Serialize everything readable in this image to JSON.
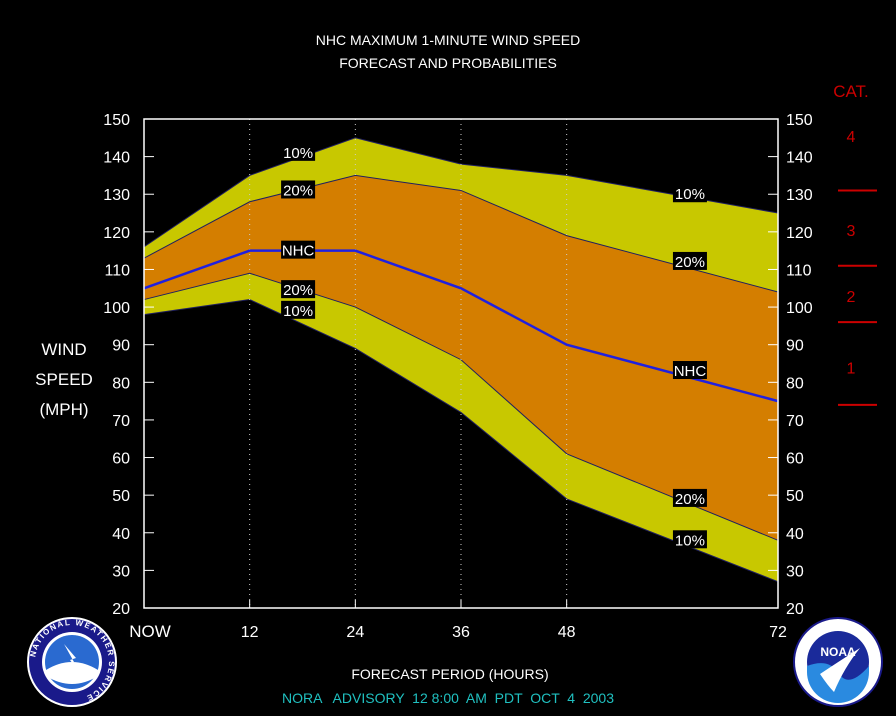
{
  "title_line1": "NHC MAXIMUM 1-MINUTE WIND SPEED",
  "title_line2": "FORECAST AND PROBABILITIES",
  "ylabel_lines": [
    "WIND",
    "SPEED",
    "(MPH)"
  ],
  "xlabel": "FORECAST PERIOD (HOURS)",
  "footer": "NORA   ADVISORY  12 8:00  AM  PDT  OCT  4  2003",
  "cat_header": "CAT.",
  "categories": [
    {
      "label": "4",
      "y": 145.5
    },
    {
      "label": "3",
      "y": 120.5
    },
    {
      "label": "2",
      "y": 103
    },
    {
      "label": "1",
      "y": 84
    }
  ],
  "cat_boundaries": [
    131,
    111,
    96,
    74
  ],
  "logos": {
    "nws": "NATIONAL WEATHER SERVICE",
    "noaa": "NOAA"
  },
  "colors": {
    "outer_band": "#c8c800",
    "inner_band": "#d47e00",
    "nhc_line": "#2020e0",
    "category": "#cc0000",
    "footer": "#20c0c0",
    "axis": "#ffffff"
  },
  "chart_data": {
    "type": "area",
    "x": [
      0,
      12,
      24,
      36,
      48,
      72
    ],
    "x_tick_labels": [
      "NOW",
      "12",
      "24",
      "36",
      "48",
      "72"
    ],
    "ylim": [
      20,
      150
    ],
    "y_ticks": [
      20,
      30,
      40,
      50,
      60,
      70,
      80,
      90,
      100,
      110,
      120,
      130,
      140,
      150
    ],
    "gridlines": "vertical dotted at 12, 24, 36, 48",
    "series": [
      {
        "name": "10%",
        "values": [
          116,
          135,
          145,
          138,
          135,
          125
        ]
      },
      {
        "name": "20%",
        "values": [
          113,
          128,
          135,
          131,
          119,
          104
        ]
      },
      {
        "name": "NHC",
        "values": [
          105,
          115,
          115,
          105,
          90,
          75
        ]
      },
      {
        "name": "20%",
        "values": [
          102,
          109,
          100,
          86,
          61,
          38
        ]
      },
      {
        "name": "10%",
        "values": [
          98,
          102,
          89,
          72,
          49,
          27
        ]
      }
    ],
    "labels": [
      {
        "text": "10%",
        "x": 17.5,
        "y": 141
      },
      {
        "text": "20%",
        "x": 17.5,
        "y": 131
      },
      {
        "text": "NHC",
        "x": 17.5,
        "y": 115
      },
      {
        "text": "20%",
        "x": 17.5,
        "y": 104.5
      },
      {
        "text": "10%",
        "x": 17.5,
        "y": 99
      },
      {
        "text": "10%",
        "x": 62,
        "y": 130
      },
      {
        "text": "20%",
        "x": 62,
        "y": 112
      },
      {
        "text": "NHC",
        "x": 62,
        "y": 83
      },
      {
        "text": "20%",
        "x": 62,
        "y": 49
      },
      {
        "text": "10%",
        "x": 62,
        "y": 38
      }
    ]
  }
}
